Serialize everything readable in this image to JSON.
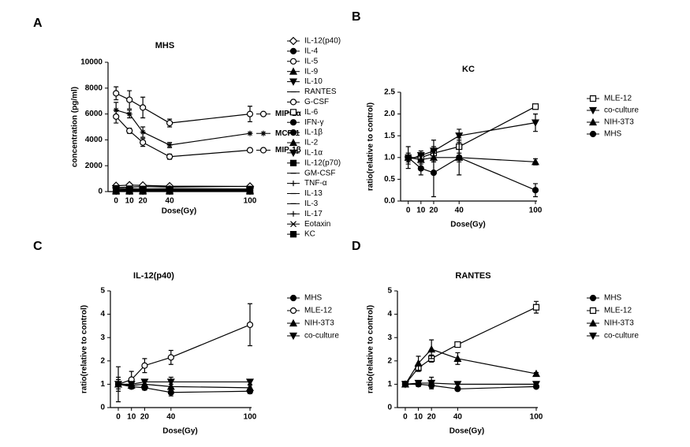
{
  "chart_data": [
    {
      "type": "line",
      "label": "A",
      "title": "MHS",
      "x_label": "Dose(Gy)",
      "y_label": "concentration (pg/ml)",
      "x": [
        0,
        10,
        20,
        40,
        100
      ],
      "xlim": [
        -6,
        100
      ],
      "xticks": [
        0,
        10,
        20,
        40,
        100
      ],
      "ylim": [
        0,
        10000
      ],
      "yticks": [
        0,
        2000,
        4000,
        6000,
        8000,
        10000
      ],
      "grid": false,
      "legend": "right",
      "series": [
        {
          "name": "MIP-1α",
          "color": "#000000",
          "marker": "circle-open",
          "inline_label": true,
          "values": [
            7600,
            7100,
            6500,
            5300,
            6000
          ],
          "errors": [
            500,
            700,
            800,
            300,
            600
          ]
        },
        {
          "name": "MCP-1",
          "color": "#000000",
          "marker": "star",
          "inline_label": true,
          "values": [
            6300,
            6000,
            4600,
            3600,
            4500
          ],
          "errors": [
            600,
            300,
            400,
            200,
            0
          ]
        },
        {
          "name": "MIP-1β",
          "color": "#000000",
          "marker": "circle-open",
          "inline_label": true,
          "values": [
            5800,
            4700,
            3800,
            2700,
            3200
          ],
          "errors": [
            500,
            200,
            300,
            200,
            150
          ]
        },
        {
          "name": "IL-12(p40)",
          "color": "#000000",
          "marker": "diamond-open",
          "values": [
            450,
            500,
            480,
            420,
            400
          ]
        },
        {
          "name": "IL-4",
          "color": "#000000",
          "marker": "circle",
          "values": [
            60,
            60,
            60,
            60,
            60
          ]
        },
        {
          "name": "IL-5",
          "color": "#000000",
          "marker": "circle-open",
          "values": [
            80,
            80,
            80,
            80,
            80
          ]
        },
        {
          "name": "IL-9",
          "color": "#000000",
          "marker": "triangle",
          "values": [
            100,
            100,
            100,
            100,
            100
          ]
        },
        {
          "name": "IL-10",
          "color": "#000000",
          "marker": "triangle-down",
          "values": [
            50,
            50,
            50,
            50,
            50
          ]
        },
        {
          "name": "RANTES",
          "color": "#000000",
          "marker": "dash",
          "values": [
            300,
            350,
            380,
            350,
            400
          ]
        },
        {
          "name": "G-CSF",
          "color": "#000000",
          "marker": "circle-open",
          "values": [
            150,
            180,
            200,
            220,
            200
          ]
        },
        {
          "name": "IL-6",
          "color": "#000000",
          "marker": "square-open",
          "values": [
            120,
            130,
            140,
            130,
            150
          ]
        },
        {
          "name": "IFN-γ",
          "color": "#000000",
          "marker": "circle",
          "values": [
            40,
            40,
            40,
            40,
            40
          ]
        },
        {
          "name": "IL-1β",
          "color": "#000000",
          "marker": "circle",
          "values": [
            70,
            70,
            70,
            70,
            70
          ]
        },
        {
          "name": "IL-2",
          "color": "#000000",
          "marker": "triangle",
          "values": [
            30,
            30,
            30,
            30,
            30
          ]
        },
        {
          "name": "IL-1α",
          "color": "#000000",
          "marker": "triangle-down",
          "values": [
            90,
            90,
            90,
            90,
            90
          ]
        },
        {
          "name": "IL-12(p70)",
          "color": "#000000",
          "marker": "square",
          "values": [
            20,
            20,
            20,
            20,
            20
          ]
        },
        {
          "name": "GM-CSF",
          "color": "#000000",
          "marker": "dash",
          "values": [
            110,
            110,
            110,
            110,
            110
          ]
        },
        {
          "name": "TNF-α",
          "color": "#000000",
          "marker": "plus",
          "values": [
            60,
            70,
            70,
            60,
            60
          ]
        },
        {
          "name": "IL-13",
          "color": "#000000",
          "marker": "dash",
          "values": [
            35,
            35,
            35,
            35,
            35
          ]
        },
        {
          "name": "IL-3",
          "color": "#000000",
          "marker": "dash",
          "values": [
            25,
            25,
            25,
            25,
            25
          ]
        },
        {
          "name": "IL-17",
          "color": "#000000",
          "marker": "plus",
          "values": [
            45,
            45,
            45,
            45,
            45
          ]
        },
        {
          "name": "Eotaxin",
          "color": "#000000",
          "marker": "cross",
          "values": [
            55,
            55,
            55,
            55,
            55
          ]
        },
        {
          "name": "KC",
          "color": "#000000",
          "marker": "square",
          "values": [
            250,
            220,
            200,
            180,
            100
          ]
        }
      ]
    },
    {
      "type": "line",
      "label": "B",
      "title": "KC",
      "x_label": "Dose(Gy)",
      "y_label": "ratio(relative to control)",
      "x": [
        0,
        10,
        20,
        40,
        100
      ],
      "xlim": [
        -6,
        100
      ],
      "xticks": [
        0,
        10,
        20,
        40,
        100
      ],
      "ylim": [
        0,
        2.5
      ],
      "yticks": [
        {
          "value": 0,
          "label": "0.0"
        },
        0.5,
        {
          "value": 1,
          "label": "1.0"
        },
        1.5,
        {
          "value": 2,
          "label": "2.0"
        },
        2.5
      ],
      "grid": false,
      "legend": "right",
      "series": [
        {
          "name": "MLE-12",
          "color": "#000000",
          "marker": "square-open",
          "values": [
            1.0,
            1.0,
            1.1,
            1.25,
            2.17
          ],
          "errors": [
            0.05,
            0.1,
            0.15,
            0.2,
            0.03
          ]
        },
        {
          "name": "co-culture",
          "color": "#000000",
          "marker": "triangle-down",
          "values": [
            0.95,
            1.05,
            1.15,
            1.5,
            1.8
          ],
          "errors": [
            0.1,
            0.1,
            0.25,
            0.15,
            0.2
          ]
        },
        {
          "name": "NIH-3T3",
          "color": "#000000",
          "marker": "triangle",
          "values": [
            1.0,
            0.95,
            1.0,
            1.0,
            0.9
          ],
          "errors": [
            0.1,
            0.1,
            0.1,
            0.4,
            0.07
          ]
        },
        {
          "name": "MHS",
          "color": "#000000",
          "marker": "circle",
          "values": [
            1.0,
            0.75,
            0.65,
            1.0,
            0.25
          ],
          "errors": [
            0.25,
            0.15,
            0.55,
            0.1,
            0.15
          ]
        }
      ]
    },
    {
      "type": "line",
      "label": "C",
      "title": "IL-12(p40)",
      "x_label": "Dose(Gy)",
      "y_label": "ratio(relative to control)",
      "x": [
        0,
        10,
        20,
        40,
        100
      ],
      "xlim": [
        -6,
        100
      ],
      "xticks": [
        0,
        10,
        20,
        40,
        100
      ],
      "ylim": [
        0,
        5
      ],
      "yticks": [
        0,
        1,
        2,
        3,
        4,
        5
      ],
      "grid": false,
      "legend": "right",
      "series": [
        {
          "name": "MHS",
          "color": "#000000",
          "marker": "circle",
          "values": [
            1.0,
            0.9,
            0.85,
            0.65,
            0.7
          ],
          "errors": [
            0.2,
            0.1,
            0.1,
            0.05,
            0.1
          ]
        },
        {
          "name": "MLE-12",
          "color": "#000000",
          "marker": "circle-open",
          "values": [
            1.0,
            1.2,
            1.8,
            2.15,
            3.55
          ],
          "errors": [
            0.75,
            0.35,
            0.3,
            0.3,
            0.9
          ]
        },
        {
          "name": "NIH-3T3",
          "color": "#000000",
          "marker": "triangle",
          "values": [
            1.0,
            0.95,
            1.0,
            0.9,
            0.85
          ],
          "errors": [
            0.3,
            0.1,
            0.15,
            0.4,
            0.1
          ]
        },
        {
          "name": "co-culture",
          "color": "#000000",
          "marker": "triangle-down",
          "values": [
            1.0,
            1.0,
            1.1,
            1.1,
            1.1
          ],
          "errors": [
            0.1,
            0.1,
            0.1,
            0.1,
            0.1
          ]
        }
      ]
    },
    {
      "type": "line",
      "label": "D",
      "title": "RANTES",
      "x_label": "Dose(Gy)",
      "y_label": "ratio(relative to control)",
      "x": [
        0,
        10,
        20,
        40,
        100
      ],
      "xlim": [
        -6,
        100
      ],
      "xticks": [
        0,
        10,
        20,
        40,
        100
      ],
      "ylim": [
        0,
        5
      ],
      "yticks": [
        0,
        1,
        2,
        3,
        4,
        5
      ],
      "grid": false,
      "legend": "right",
      "series": [
        {
          "name": "MHS",
          "color": "#000000",
          "marker": "circle",
          "values": [
            1.0,
            1.0,
            0.95,
            0.8,
            0.9
          ],
          "errors": [
            0.1,
            0.1,
            0.1,
            0.05,
            0.05
          ]
        },
        {
          "name": "MLE-12",
          "color": "#000000",
          "marker": "square-open",
          "values": [
            1.0,
            1.7,
            2.1,
            2.7,
            4.3
          ],
          "errors": [
            0.1,
            0.15,
            0.15,
            0.1,
            0.25
          ]
        },
        {
          "name": "NIH-3T3",
          "color": "#000000",
          "marker": "triangle",
          "values": [
            1.0,
            1.9,
            2.5,
            2.1,
            1.45
          ],
          "errors": [
            0.1,
            0.3,
            0.4,
            0.25,
            0.05
          ]
        },
        {
          "name": "co-culture",
          "color": "#000000",
          "marker": "triangle-down",
          "values": [
            1.0,
            1.05,
            1.05,
            1.0,
            1.0
          ],
          "errors": [
            0.1,
            0.1,
            0.25,
            0.1,
            0.05
          ]
        }
      ]
    }
  ]
}
